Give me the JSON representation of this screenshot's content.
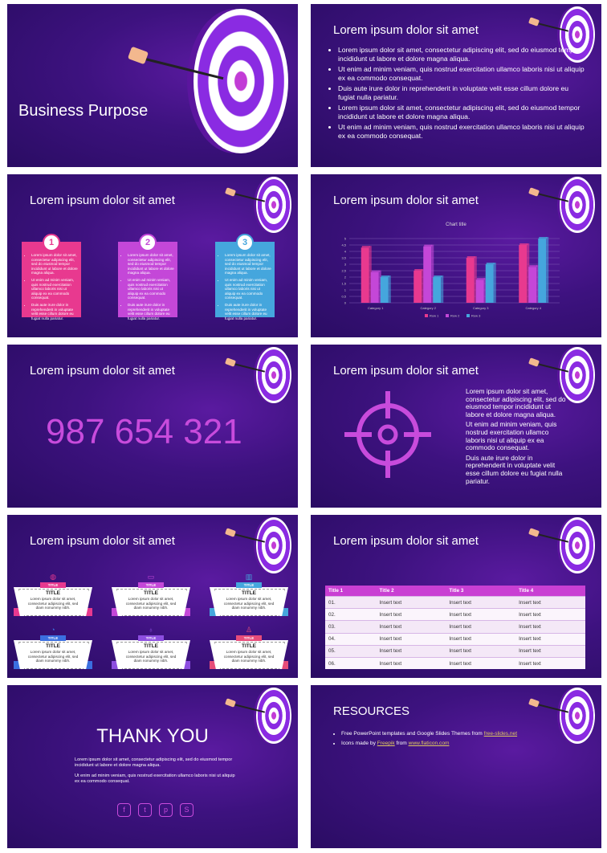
{
  "slides": {
    "s1": {
      "title": "Business Purpose"
    },
    "s2": {
      "title": "Lorem ipsum dolor sit amet",
      "bullets": [
        "Lorem ipsum dolor sit amet, consectetur adipiscing elit, sed do eiusmod tempor incididunt ut labore et dolore magna aliqua.",
        "Ut enim ad minim veniam, quis nostrud exercitation ullamco laboris nisi ut aliquip ex ea commodo consequat.",
        "Duis aute irure dolor in reprehenderit in voluptate velit esse cillum dolore eu fugiat nulla pariatur.",
        "Lorem ipsum dolor sit amet, consectetur adipiscing elit, sed do eiusmod tempor incididunt ut labore et dolore magna aliqua.",
        "Ut enim ad minim veniam, quis nostrud exercitation ullamco laboris nisi ut aliquip ex ea commodo consequat."
      ]
    },
    "s3": {
      "title": "Lorem ipsum dolor sit amet",
      "boxes": [
        {
          "num": "1",
          "color": "#e8398f",
          "items": [
            "Lorem ipsum dolor sit amet, consectetur adipiscing elit, sed do eiusmod tempor incididunt ut labore et dolore magna aliqua.",
            "Ut enim ad minim veniam, quis nostrud exercitation ullamco laboris nisi ut aliquip ex ea commodo consequat.",
            "Duis aute irure dolor in reprehenderit in voluptate velit esse cillum dolore eu fugiat nulla pariatur."
          ]
        },
        {
          "num": "2",
          "color": "#c447d8",
          "items": [
            "Lorem ipsum dolor sit amet, consectetur adipiscing elit, sed do eiusmod tempor incididunt ut labore et dolore magna aliqua.",
            "Ut enim ad minim veniam, quis nostrud exercitation ullamco laboris nisi ut aliquip ex ea commodo consequat.",
            "Duis aute irure dolor in reprehenderit in voluptate velit esse cillum dolore eu fugiat nulla pariatur."
          ]
        },
        {
          "num": "3",
          "color": "#45a6dd",
          "items": [
            "Lorem ipsum dolor sit amet, consectetur adipiscing elit, sed do eiusmod tempor incididunt ut labore et dolore magna aliqua.",
            "Ut enim ad minim veniam, quis nostrud exercitation ullamco laboris nisi ut aliquip ex ea commodo consequat.",
            "Duis aute irure dolor in reprehenderit in voluptate velit esse cillum dolore eu fugiat nulla pariatur."
          ]
        }
      ]
    },
    "s4": {
      "title": "Lorem ipsum dolor sit amet"
    },
    "s5": {
      "title": "Lorem ipsum dolor sit amet",
      "number": "987 654 321"
    },
    "s6": {
      "title": "Lorem ipsum dolor sit amet",
      "paragraphs": [
        "Lorem ipsum dolor sit amet, consectetur adipiscing elit, sed do eiusmod tempor incididunt ut labore et dolore magna aliqua.",
        "Ut enim ad minim veniam, quis nostrud exercitation ullamco laboris nisi ut aliquip ex ea commodo consequat.",
        "Duis aute irure dolor in reprehenderit in voluptate velit esse cillum dolore eu fugiat nulla pariatur."
      ]
    },
    "s7": {
      "title": "Lorem ipsum dolor sit amet",
      "cards": [
        {
          "tab": "TITLE",
          "title": "TITLE",
          "body": "Lorem ipsum dolor sit amet, consectetur adipiscing elit, sed diam nonummy nibh.",
          "color": "#e8398f",
          "icon": "globe-icon",
          "glyph": "◍"
        },
        {
          "tab": "TITLE",
          "title": "TITLE",
          "body": "Lorem ipsum dolor sit amet, consectetur adipiscing elit, sed diam nonummy nibh.",
          "color": "#c447d8",
          "icon": "folder-icon",
          "glyph": "▭"
        },
        {
          "tab": "TITLE",
          "title": "TITLE",
          "body": "Lorem ipsum dolor sit amet, consectetur adipiscing elit, sed diam nonummy nibh.",
          "color": "#45a6dd",
          "icon": "columns-icon",
          "glyph": "▥"
        },
        {
          "tab": "TITLE",
          "title": "TITLE",
          "body": "Lorem ipsum dolor sit amet, consectetur adipiscing elit, sed diam nonummy nibh.",
          "color": "#3b6fe0",
          "icon": "clock-icon",
          "glyph": "◔"
        },
        {
          "tab": "TITLE",
          "title": "TITLE",
          "body": "Lorem ipsum dolor sit amet, consectetur adipiscing elit, sed diam nonummy nibh.",
          "color": "#8d4ee0",
          "icon": "lightbulb-icon",
          "glyph": "♁"
        },
        {
          "tab": "TITLE",
          "title": "TITLE",
          "body": "Lorem ipsum dolor sit amet, consectetur adipiscing elit, sed diam nonummy nibh.",
          "color": "#e64c7a",
          "icon": "people-icon",
          "glyph": "♙"
        }
      ]
    },
    "s8": {
      "title": "Lorem ipsum dolor sit amet",
      "headers": [
        "Title 1",
        "Title 2",
        "Title 3",
        "Title 4"
      ],
      "rows": [
        [
          "01.",
          "Insert text",
          "Insert text",
          "Insert text"
        ],
        [
          "02.",
          "Insert text",
          "Insert text",
          "Insert text"
        ],
        [
          "03.",
          "Insert text",
          "Insert text",
          "Insert text"
        ],
        [
          "04.",
          "Insert text",
          "Insert text",
          "Insert text"
        ],
        [
          "05.",
          "Insert text",
          "Insert text",
          "Insert text"
        ],
        [
          "06.",
          "Insert text",
          "Insert text",
          "Insert text"
        ]
      ]
    },
    "s9": {
      "title": "THANK YOU",
      "p1": "Lorem ipsum dolor sit amet, consectetur adipiscing elit, sed do eiusmod tempor incididunt ut labore et dolore magna aliqua.",
      "p2": "Ut enim ad minim veniam, quis nostrud exercitation ullamco laboris nisi ut aliquip ex ea commodo consequat.",
      "social": [
        {
          "icon": "facebook-icon",
          "glyph": "f"
        },
        {
          "icon": "twitter-icon",
          "glyph": "t"
        },
        {
          "icon": "pinterest-icon",
          "glyph": "p"
        },
        {
          "icon": "skype-icon",
          "glyph": "S"
        }
      ]
    },
    "s10": {
      "title": "RESOURCES",
      "line1_text": "Free PowerPoint templates and Google Slides Themes from ",
      "line1_link": "free-slides.net",
      "line2_text": "Icons made by ",
      "line2_link1": "Freepik",
      "line2_mid": " from ",
      "line2_link2": "www.flaticon.com"
    }
  },
  "chart_data": {
    "type": "bar",
    "title": "Chart title",
    "categories": [
      "Category 1",
      "Category 2",
      "Category 3",
      "Category 4"
    ],
    "series": [
      {
        "name": "Row 1",
        "values": [
          4.3,
          2.5,
          3.5,
          4.5
        ],
        "color": "#e8398f"
      },
      {
        "name": "Row 2",
        "values": [
          2.4,
          4.4,
          1.8,
          2.8
        ],
        "color": "#c447d8"
      },
      {
        "name": "Row 3",
        "values": [
          2.0,
          2.0,
          3.0,
          5.0
        ],
        "color": "#45a6dd"
      }
    ],
    "ylim": [
      0,
      5
    ],
    "yticks": [
      "0",
      "0,5",
      "1",
      "1,5",
      "2",
      "2,5",
      "3",
      "3,5",
      "4",
      "4,5",
      "5"
    ],
    "legend": "bottom",
    "grid": true
  }
}
